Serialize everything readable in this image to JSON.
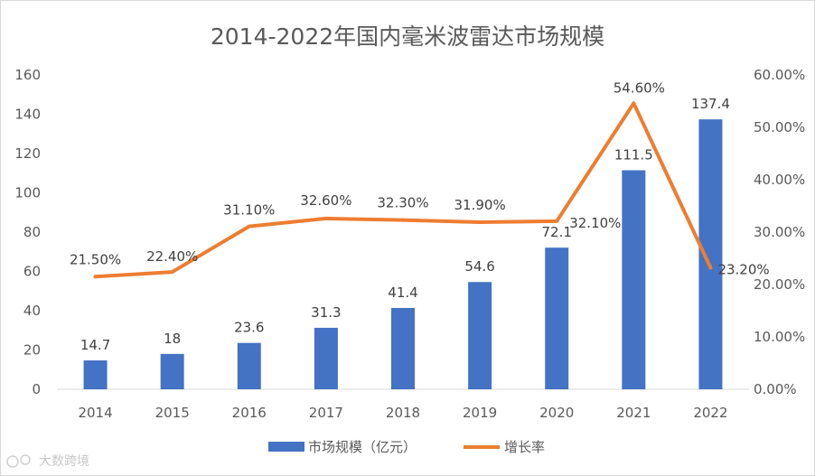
{
  "chart_data": {
    "type": "bar",
    "title": "2014-2022年国内毫米波雷达市场规模",
    "categories": [
      "2014",
      "2015",
      "2016",
      "2017",
      "2018",
      "2019",
      "2020",
      "2021",
      "2022"
    ],
    "series": [
      {
        "name": "市场规模（亿元）",
        "type": "bar",
        "axis": "left",
        "color": "#4472C4",
        "values": [
          14.7,
          18,
          23.6,
          31.3,
          41.4,
          54.6,
          72.1,
          111.5,
          137.4
        ],
        "labels": [
          "14.7",
          "18",
          "23.6",
          "31.3",
          "41.4",
          "54.6",
          "72.1",
          "111.5",
          "137.4"
        ]
      },
      {
        "name": "增长率",
        "type": "line",
        "axis": "right",
        "color": "#ED7D31",
        "values": [
          21.5,
          22.4,
          31.1,
          32.6,
          32.3,
          31.9,
          32.1,
          54.6,
          23.2
        ],
        "labels": [
          "21.50%",
          "22.40%",
          "31.10%",
          "32.60%",
          "32.30%",
          "31.90%",
          "32.10%",
          "54.60%",
          "23.20%"
        ]
      }
    ],
    "y_left": {
      "min": 0,
      "max": 160,
      "ticks": [
        "0",
        "20",
        "40",
        "60",
        "80",
        "100",
        "120",
        "140",
        "160"
      ]
    },
    "y_right": {
      "min": 0,
      "max": 60,
      "ticks": [
        "0.00%",
        "10.00%",
        "20.00%",
        "30.00%",
        "40.00%",
        "50.00%",
        "60.00%"
      ]
    },
    "legend": "bottom",
    "grid": false
  },
  "watermark": {
    "text": "大数跨境"
  }
}
